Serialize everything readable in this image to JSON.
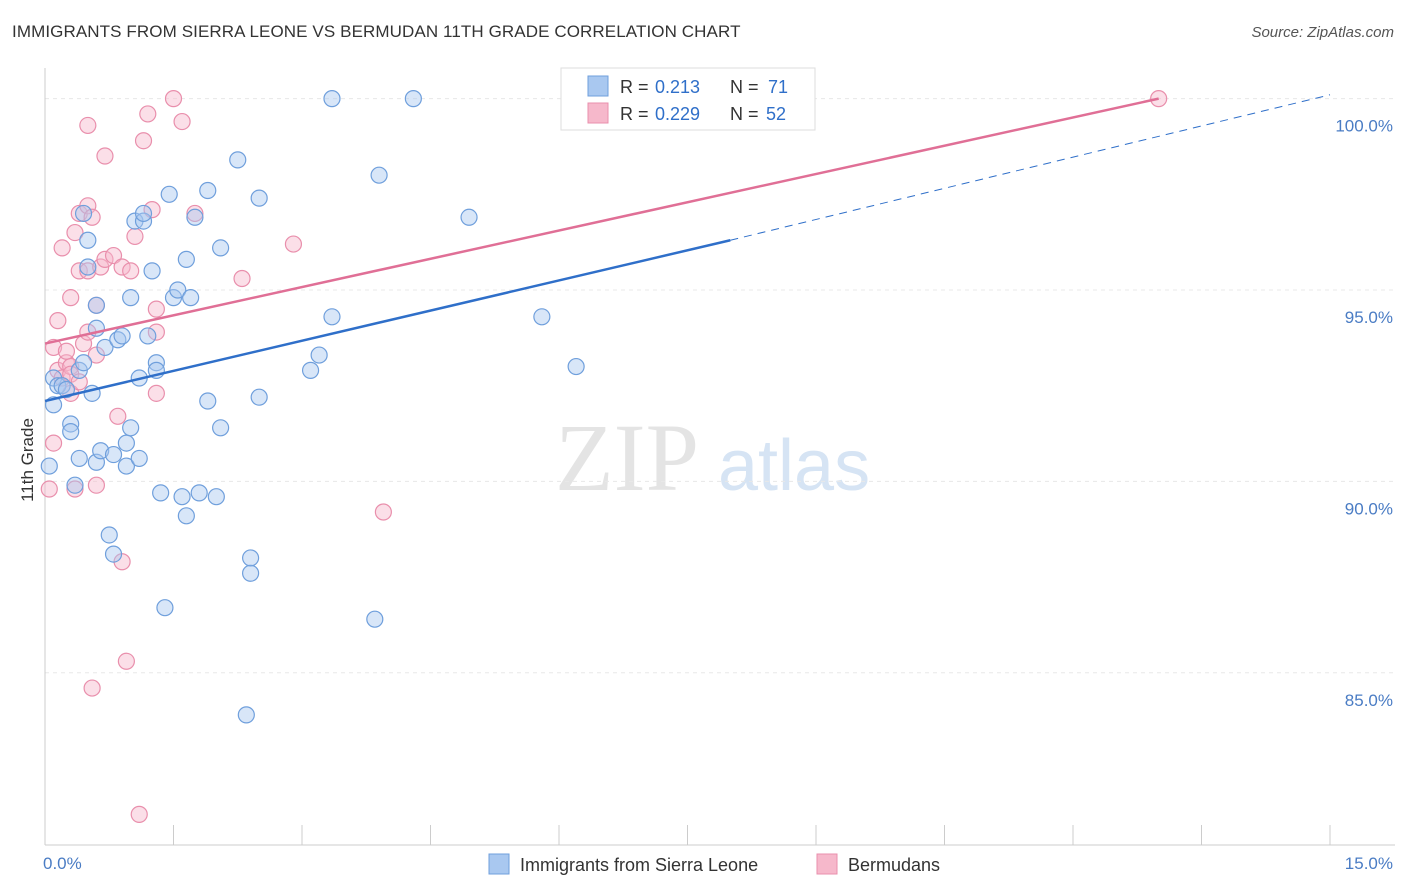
{
  "title": "IMMIGRANTS FROM SIERRA LEONE VS BERMUDAN 11TH GRADE CORRELATION CHART",
  "source": "Source: ZipAtlas.com",
  "watermark": {
    "zip": "ZIP",
    "atlas": "atlas"
  },
  "legend_box": {
    "r_label": "R =",
    "n_label": "N =",
    "rows": [
      {
        "r": "0.213",
        "n": "71"
      },
      {
        "r": "0.229",
        "n": "52"
      }
    ]
  },
  "colors": {
    "blue_fill": "#a9c8f0",
    "blue_stroke": "#6f9fdc",
    "blue_line": "#2f6fc9",
    "pink_fill": "#f6b8cb",
    "pink_stroke": "#e98fac",
    "pink_line": "#e06f96",
    "tick_text": "#4a7cc4"
  },
  "chart_data": {
    "type": "scatter",
    "title": "IMMIGRANTS FROM SIERRA LEONE VS BERMUDAN 11TH GRADE CORRELATION CHART",
    "xlabel": "",
    "ylabel": "11th Grade",
    "xlim": [
      0,
      15
    ],
    "ylim": [
      80.5,
      100.8
    ],
    "x_tick_labels": [
      "0.0%",
      "15.0%"
    ],
    "y_ticks": [
      85,
      90,
      95,
      100
    ],
    "y_tick_labels": [
      "85.0%",
      "90.0%",
      "95.0%",
      "100.0%"
    ],
    "grid": true,
    "series": [
      {
        "name": "Immigrants from Sierra Leone",
        "color": "#a9c8f0",
        "r": 0.213,
        "n": 71,
        "trend": {
          "x": [
            0,
            8.0
          ],
          "y": [
            92.1,
            96.3
          ]
        },
        "trend_extension": {
          "x": [
            8.0,
            15.0
          ],
          "y": [
            96.3,
            100.1
          ]
        },
        "points": [
          [
            0.05,
            90.4
          ],
          [
            0.1,
            92.0
          ],
          [
            0.1,
            92.7
          ],
          [
            0.15,
            92.5
          ],
          [
            0.2,
            92.5
          ],
          [
            0.25,
            92.4
          ],
          [
            0.3,
            91.5
          ],
          [
            0.3,
            91.3
          ],
          [
            0.35,
            89.9
          ],
          [
            0.4,
            92.9
          ],
          [
            0.4,
            90.6
          ],
          [
            0.45,
            93.1
          ],
          [
            0.5,
            96.3
          ],
          [
            0.45,
            97.0
          ],
          [
            0.5,
            95.6
          ],
          [
            0.55,
            92.3
          ],
          [
            0.6,
            94.6
          ],
          [
            0.6,
            94.0
          ],
          [
            0.6,
            90.5
          ],
          [
            0.65,
            90.8
          ],
          [
            0.7,
            93.5
          ],
          [
            0.75,
            88.6
          ],
          [
            0.8,
            88.1
          ],
          [
            0.8,
            90.7
          ],
          [
            0.85,
            93.7
          ],
          [
            0.9,
            93.8
          ],
          [
            0.95,
            90.4
          ],
          [
            0.95,
            91.0
          ],
          [
            1.0,
            94.8
          ],
          [
            1.0,
            91.4
          ],
          [
            1.05,
            96.8
          ],
          [
            1.1,
            92.7
          ],
          [
            1.1,
            90.6
          ],
          [
            1.15,
            96.8
          ],
          [
            1.15,
            97.0
          ],
          [
            1.2,
            93.8
          ],
          [
            1.25,
            95.5
          ],
          [
            1.3,
            93.1
          ],
          [
            1.3,
            92.9
          ],
          [
            1.35,
            89.7
          ],
          [
            1.4,
            86.7
          ],
          [
            1.45,
            97.5
          ],
          [
            1.5,
            94.8
          ],
          [
            1.55,
            95.0
          ],
          [
            1.6,
            89.6
          ],
          [
            1.65,
            95.8
          ],
          [
            1.65,
            89.1
          ],
          [
            1.7,
            94.8
          ],
          [
            1.75,
            96.9
          ],
          [
            1.8,
            89.7
          ],
          [
            1.9,
            92.1
          ],
          [
            1.9,
            97.6
          ],
          [
            2.0,
            89.6
          ],
          [
            2.05,
            96.1
          ],
          [
            2.05,
            91.4
          ],
          [
            2.25,
            98.4
          ],
          [
            2.35,
            83.9
          ],
          [
            2.4,
            87.6
          ],
          [
            2.4,
            88.0
          ],
          [
            2.5,
            92.2
          ],
          [
            2.5,
            97.4
          ],
          [
            3.1,
            92.9
          ],
          [
            3.2,
            93.3
          ],
          [
            3.35,
            94.3
          ],
          [
            3.35,
            100.0
          ],
          [
            3.85,
            86.4
          ],
          [
            3.9,
            98.0
          ],
          [
            4.3,
            100.0
          ],
          [
            4.95,
            96.9
          ],
          [
            5.8,
            94.3
          ],
          [
            6.2,
            93.0
          ]
        ]
      },
      {
        "name": "Bermudans",
        "color": "#f6b8cb",
        "r": 0.229,
        "n": 52,
        "trend": {
          "x": [
            0,
            13.0
          ],
          "y": [
            93.6,
            100.0
          ]
        },
        "points": [
          [
            0.05,
            89.8
          ],
          [
            0.1,
            93.5
          ],
          [
            0.1,
            91.0
          ],
          [
            0.15,
            92.9
          ],
          [
            0.15,
            94.2
          ],
          [
            0.2,
            92.7
          ],
          [
            0.2,
            96.1
          ],
          [
            0.25,
            93.1
          ],
          [
            0.3,
            94.8
          ],
          [
            0.3,
            93.0
          ],
          [
            0.3,
            92.8
          ],
          [
            0.3,
            92.3
          ],
          [
            0.35,
            89.8
          ],
          [
            0.35,
            96.5
          ],
          [
            0.4,
            95.5
          ],
          [
            0.4,
            97.0
          ],
          [
            0.45,
            93.6
          ],
          [
            0.5,
            95.5
          ],
          [
            0.5,
            93.9
          ],
          [
            0.5,
            97.2
          ],
          [
            0.5,
            99.3
          ],
          [
            0.55,
            96.9
          ],
          [
            0.55,
            84.6
          ],
          [
            0.6,
            94.6
          ],
          [
            0.6,
            89.9
          ],
          [
            0.65,
            95.6
          ],
          [
            0.7,
            95.8
          ],
          [
            0.8,
            95.9
          ],
          [
            0.7,
            98.5
          ],
          [
            0.85,
            91.7
          ],
          [
            0.9,
            87.9
          ],
          [
            0.9,
            95.6
          ],
          [
            0.95,
            85.3
          ],
          [
            1.0,
            95.5
          ],
          [
            1.05,
            96.4
          ],
          [
            1.1,
            81.3
          ],
          [
            1.15,
            98.9
          ],
          [
            1.2,
            99.6
          ],
          [
            1.25,
            97.1
          ],
          [
            1.3,
            94.5
          ],
          [
            1.3,
            93.9
          ],
          [
            1.3,
            92.3
          ],
          [
            1.5,
            100.0
          ],
          [
            1.6,
            99.4
          ],
          [
            1.75,
            97.0
          ],
          [
            2.3,
            95.3
          ],
          [
            2.9,
            96.2
          ],
          [
            3.95,
            89.2
          ],
          [
            13.0,
            100.0
          ],
          [
            0.25,
            93.4
          ],
          [
            0.4,
            92.6
          ],
          [
            0.6,
            93.3
          ]
        ]
      }
    ]
  },
  "bottom_legend": [
    {
      "label": "Immigrants from Sierra Leone"
    },
    {
      "label": "Bermudans"
    }
  ]
}
